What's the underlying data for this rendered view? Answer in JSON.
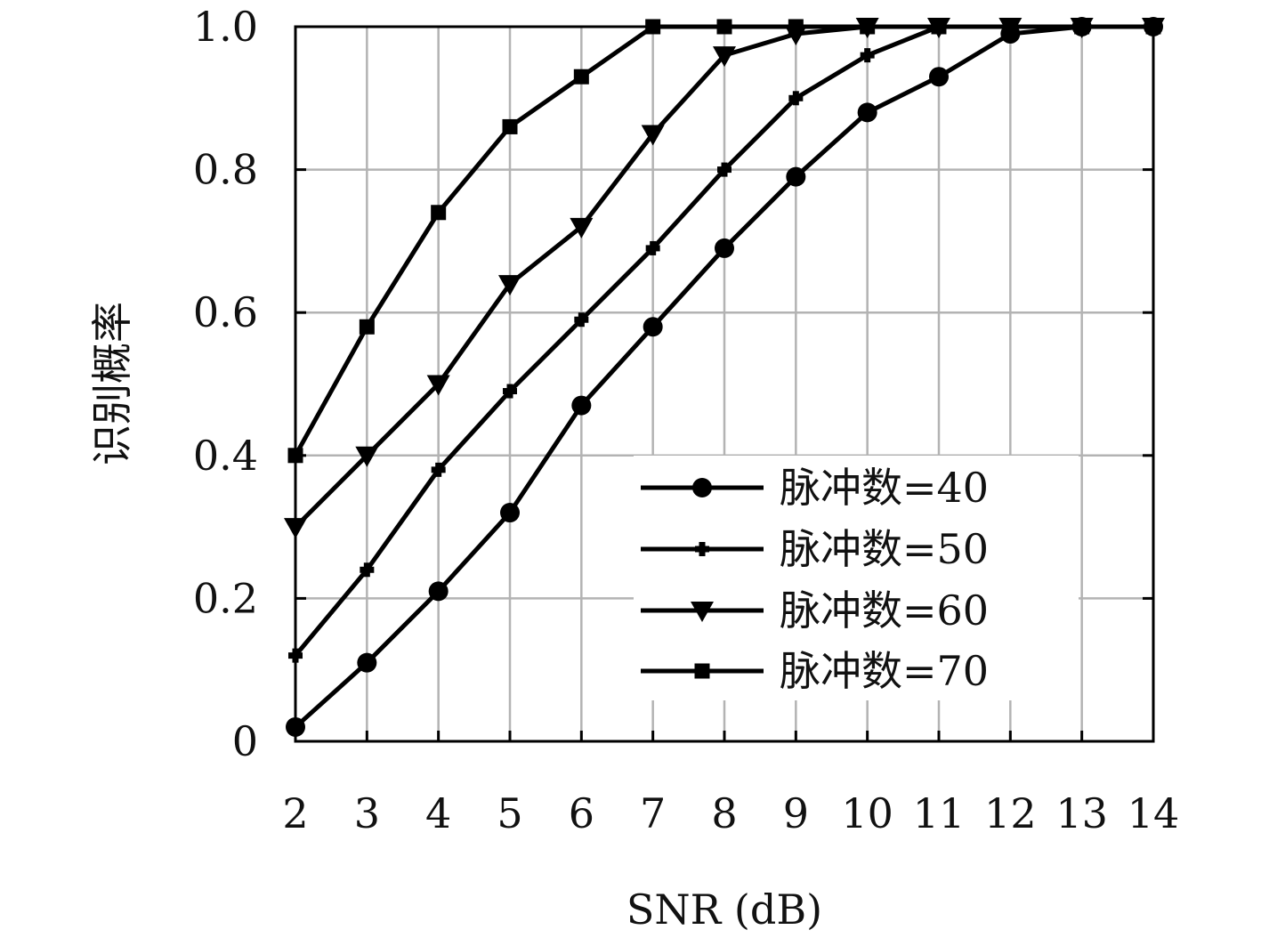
{
  "chart_data": {
    "type": "line",
    "title": "",
    "xlabel": "SNR (dB)",
    "ylabel": "识别概率",
    "x": [
      2,
      3,
      4,
      5,
      6,
      7,
      8,
      9,
      10,
      11,
      12,
      13,
      14
    ],
    "xlim": [
      2,
      14
    ],
    "ylim": [
      0,
      1.0
    ],
    "x_ticks": [
      "2",
      "3",
      "4",
      "5",
      "6",
      "7",
      "8",
      "9",
      "10",
      "11",
      "12",
      "13",
      "14"
    ],
    "y_ticks": [
      "0",
      "0.2",
      "0.4",
      "0.6",
      "0.8",
      "1.0"
    ],
    "grid": true,
    "legend_position": "lower-right",
    "colors": {
      "line": "#000000",
      "grid": "#b3b3b3",
      "axis": "#000000"
    },
    "series": [
      {
        "name": "脉冲数=40",
        "marker": "circle",
        "values": [
          0.02,
          0.11,
          0.21,
          0.32,
          0.47,
          0.58,
          0.69,
          0.79,
          0.88,
          0.93,
          0.99,
          1.0,
          1.0
        ]
      },
      {
        "name": "脉冲数=50",
        "marker": "plus",
        "values": [
          0.12,
          0.24,
          0.38,
          0.49,
          0.59,
          0.69,
          0.8,
          0.9,
          0.96,
          1.0,
          1.0,
          1.0,
          1.0
        ]
      },
      {
        "name": "脉冲数=60",
        "marker": "triangle-down",
        "values": [
          0.3,
          0.4,
          0.5,
          0.64,
          0.72,
          0.85,
          0.96,
          0.99,
          1.0,
          1.0,
          1.0,
          1.0,
          1.0
        ]
      },
      {
        "name": "脉冲数=70",
        "marker": "square",
        "values": [
          0.4,
          0.58,
          0.74,
          0.86,
          0.93,
          1.0,
          1.0,
          1.0,
          1.0,
          1.0,
          1.0,
          1.0,
          1.0
        ]
      }
    ]
  }
}
